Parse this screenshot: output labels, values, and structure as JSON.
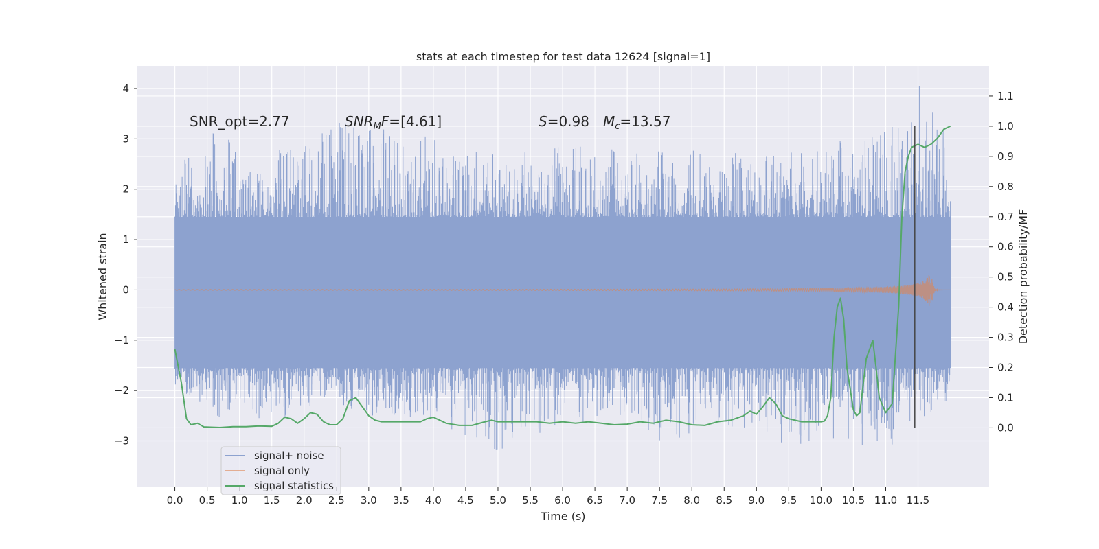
{
  "chart_data": {
    "type": "line",
    "title": "stats at each timestep for test data 12624 [signal=1]",
    "xlabel": "Time (s)",
    "ylabel_left": "Whitened strain",
    "ylabel_right": "Detection probability/MF",
    "xlim": [
      -0.58,
      12.6
    ],
    "ylim_left": [
      -3.92,
      4.45
    ],
    "ylim_right": [
      -0.197,
      1.2
    ],
    "grid": true,
    "legend_position": "lower-left",
    "x_ticks": [
      "0.0",
      "0.5",
      "1.0",
      "1.5",
      "2.0",
      "2.5",
      "3.0",
      "3.5",
      "4.0",
      "4.5",
      "5.0",
      "5.5",
      "6.0",
      "6.5",
      "7.0",
      "7.5",
      "8.0",
      "8.5",
      "9.0",
      "9.5",
      "10.0",
      "10.5",
      "11.0",
      "11.5"
    ],
    "y_ticks_left": [
      "−3",
      "−2",
      "−1",
      "0",
      "1",
      "2",
      "3",
      "4"
    ],
    "y_ticks_right": [
      "0.0",
      "0.1",
      "0.2",
      "0.3",
      "0.4",
      "0.5",
      "0.6",
      "0.7",
      "0.8",
      "0.9",
      "1.0",
      "1.1"
    ],
    "annotations": {
      "snr_opt": "SNR_opt=2.77",
      "snr_mf": "[4.61]",
      "s_value": "=0.98",
      "mc_value": "=13.57"
    },
    "vline_x": 11.45,
    "series": [
      {
        "name": "signal+ noise",
        "color": "#8da2cf",
        "axis": "left",
        "x_start": 0.0,
        "x_end": 12.0,
        "envelope_upper": [
          [
            0.0,
            2.4
          ],
          [
            0.75,
            3.3
          ],
          [
            1.0,
            2.6
          ],
          [
            1.5,
            2.8
          ],
          [
            2.0,
            2.9
          ],
          [
            2.5,
            3.4
          ],
          [
            3.0,
            3.2
          ],
          [
            3.75,
            3.3
          ],
          [
            4.5,
            2.8
          ],
          [
            5.0,
            2.7
          ],
          [
            5.5,
            2.9
          ],
          [
            6.0,
            2.9
          ],
          [
            6.5,
            2.9
          ],
          [
            7.0,
            2.7
          ],
          [
            7.5,
            2.9
          ],
          [
            8.0,
            2.8
          ],
          [
            8.5,
            2.8
          ],
          [
            9.0,
            2.6
          ],
          [
            9.5,
            2.8
          ],
          [
            10.0,
            2.9
          ],
          [
            10.5,
            3.0
          ],
          [
            11.0,
            3.2
          ],
          [
            11.55,
            4.1
          ],
          [
            12.0,
            2.9
          ]
        ],
        "envelope_lower": [
          [
            0.0,
            -1.9
          ],
          [
            0.5,
            -2.6
          ],
          [
            1.0,
            -2.4
          ],
          [
            1.5,
            -2.7
          ],
          [
            2.0,
            -2.3
          ],
          [
            2.5,
            -2.4
          ],
          [
            3.0,
            -2.5
          ],
          [
            4.0,
            -2.6
          ],
          [
            4.5,
            -2.9
          ],
          [
            5.0,
            -3.3
          ],
          [
            5.5,
            -3.0
          ],
          [
            6.0,
            -2.6
          ],
          [
            6.5,
            -2.7
          ],
          [
            7.0,
            -2.5
          ],
          [
            7.5,
            -3.0
          ],
          [
            8.0,
            -2.9
          ],
          [
            8.5,
            -2.8
          ],
          [
            9.0,
            -2.7
          ],
          [
            9.5,
            -3.2
          ],
          [
            10.0,
            -2.9
          ],
          [
            10.5,
            -3.1
          ],
          [
            11.0,
            -3.2
          ],
          [
            11.5,
            -2.6
          ],
          [
            12.0,
            -2.2
          ]
        ],
        "band_upper": 1.45,
        "band_lower": -1.55
      },
      {
        "name": "signal only",
        "color": "#dd8452",
        "axis": "left",
        "x_start": 0.0,
        "x_end": 12.0,
        "merger_time": 11.7,
        "peak_amplitude": 0.45
      },
      {
        "name": "signal statistics",
        "color": "#55a868",
        "axis": "right",
        "x": [
          0.0,
          0.1,
          0.18,
          0.25,
          0.35,
          0.45,
          0.55,
          0.7,
          0.9,
          1.1,
          1.3,
          1.5,
          1.6,
          1.7,
          1.8,
          1.9,
          2.0,
          2.1,
          2.2,
          2.3,
          2.4,
          2.5,
          2.6,
          2.7,
          2.8,
          2.9,
          3.0,
          3.1,
          3.2,
          3.4,
          3.6,
          3.8,
          3.9,
          4.0,
          4.1,
          4.2,
          4.4,
          4.6,
          4.8,
          4.9,
          5.0,
          5.2,
          5.4,
          5.6,
          5.8,
          6.0,
          6.2,
          6.4,
          6.6,
          6.8,
          7.0,
          7.2,
          7.4,
          7.6,
          7.8,
          8.0,
          8.2,
          8.4,
          8.6,
          8.8,
          8.9,
          9.0,
          9.1,
          9.2,
          9.3,
          9.4,
          9.5,
          9.7,
          9.9,
          10.0,
          10.05,
          10.1,
          10.15,
          10.2,
          10.25,
          10.3,
          10.35,
          10.4,
          10.5,
          10.55,
          10.6,
          10.7,
          10.8,
          10.85,
          10.9,
          11.0,
          11.1,
          11.2,
          11.25,
          11.3,
          11.35,
          11.4,
          11.5,
          11.6,
          11.7,
          11.8,
          11.9,
          12.0
        ],
        "y": [
          0.26,
          0.15,
          0.03,
          0.01,
          0.015,
          0.003,
          0.002,
          0.001,
          0.004,
          0.004,
          0.006,
          0.005,
          0.015,
          0.035,
          0.03,
          0.015,
          0.03,
          0.05,
          0.045,
          0.02,
          0.01,
          0.01,
          0.03,
          0.09,
          0.1,
          0.07,
          0.04,
          0.025,
          0.02,
          0.02,
          0.02,
          0.02,
          0.03,
          0.035,
          0.025,
          0.015,
          0.008,
          0.008,
          0.02,
          0.025,
          0.02,
          0.02,
          0.02,
          0.02,
          0.015,
          0.02,
          0.015,
          0.02,
          0.015,
          0.01,
          0.012,
          0.02,
          0.015,
          0.025,
          0.02,
          0.01,
          0.008,
          0.02,
          0.025,
          0.04,
          0.055,
          0.045,
          0.07,
          0.1,
          0.08,
          0.04,
          0.03,
          0.02,
          0.02,
          0.02,
          0.022,
          0.04,
          0.1,
          0.3,
          0.4,
          0.43,
          0.36,
          0.2,
          0.06,
          0.04,
          0.05,
          0.23,
          0.29,
          0.2,
          0.1,
          0.05,
          0.08,
          0.4,
          0.7,
          0.85,
          0.9,
          0.93,
          0.94,
          0.93,
          0.94,
          0.96,
          0.99,
          1.0
        ]
      }
    ]
  }
}
